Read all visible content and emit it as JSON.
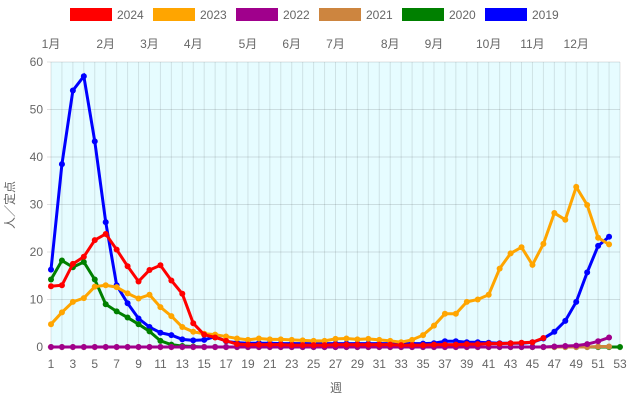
{
  "chart_data": {
    "type": "line",
    "xlabel": "週",
    "ylabel": "人／定点",
    "xlim": [
      1,
      53
    ],
    "ylim": [
      0,
      60
    ],
    "yticks": [
      0,
      10,
      20,
      30,
      40,
      50,
      60
    ],
    "xticks": [
      1,
      3,
      5,
      7,
      9,
      11,
      13,
      15,
      17,
      19,
      21,
      23,
      25,
      27,
      29,
      31,
      33,
      35,
      37,
      39,
      41,
      43,
      45,
      47,
      49,
      51,
      53
    ],
    "grid": true,
    "legend": "top",
    "background": "#e6fcff",
    "months": [
      {
        "label": "1月",
        "week": 1
      },
      {
        "label": "2月",
        "week": 6
      },
      {
        "label": "3月",
        "week": 10
      },
      {
        "label": "4月",
        "week": 14
      },
      {
        "label": "5月",
        "week": 19
      },
      {
        "label": "6月",
        "week": 23
      },
      {
        "label": "7月",
        "week": 27
      },
      {
        "label": "8月",
        "week": 32
      },
      {
        "label": "9月",
        "week": 36
      },
      {
        "label": "10月",
        "week": 41
      },
      {
        "label": "11月",
        "week": 45
      },
      {
        "label": "12月",
        "week": 49
      }
    ],
    "series": [
      {
        "name": "2024",
        "color": "#ff0000",
        "values": [
          12.8,
          13,
          17.5,
          19,
          22.5,
          23.8,
          20.5,
          17,
          13.8,
          16.2,
          17.2,
          14,
          11.2,
          5,
          2.6,
          2,
          1.3,
          0.6,
          0.5,
          0.5,
          0.5,
          0.5,
          0.4,
          0.4,
          0.4,
          0.4,
          0.5,
          0.5,
          0.5,
          0.5,
          0.5,
          0.5,
          0.4,
          0.4,
          0.4,
          0.5,
          0.5,
          0.5,
          0.6,
          0.6,
          0.7,
          0.7,
          0.8,
          0.9,
          1,
          1.9
        ]
      },
      {
        "name": "2023",
        "color": "#ffa500",
        "values": [
          4.8,
          7.3,
          9.5,
          10.3,
          12.7,
          13,
          12.6,
          11.3,
          10.2,
          11,
          8.4,
          6.5,
          4.2,
          3.2,
          2.8,
          2.6,
          2.2,
          1.8,
          1.5,
          1.8,
          1.6,
          1.6,
          1.5,
          1.4,
          1.3,
          1.3,
          1.7,
          1.8,
          1.6,
          1.7,
          1.5,
          1.3,
          1,
          1.5,
          2.5,
          4.5,
          7,
          7,
          9.5,
          10,
          11,
          16.5,
          19.7,
          21,
          17.3,
          21.7,
          28.2,
          26.8,
          33.7,
          29.9,
          23,
          21.6
        ]
      },
      {
        "name": "2022",
        "color": "#a0008c",
        "values": [
          0,
          0,
          0,
          0,
          0,
          0,
          0,
          0,
          0,
          0,
          0,
          0,
          0,
          0,
          0,
          0,
          0,
          0,
          0,
          0,
          0,
          0,
          0,
          0,
          0,
          0,
          0,
          0,
          0,
          0,
          0,
          0,
          0,
          0,
          0,
          0,
          0,
          0,
          0,
          0,
          0,
          0,
          0,
          0,
          0,
          0,
          0.1,
          0.2,
          0.3,
          0.6,
          1.2,
          2
        ]
      },
      {
        "name": "2021",
        "color": "#cd853f",
        "values": [
          0,
          0,
          0,
          0,
          0,
          0,
          0,
          0,
          0,
          0,
          0,
          0,
          0,
          0,
          0,
          0,
          0,
          0,
          0,
          0,
          0,
          0,
          0,
          0,
          0,
          0,
          0,
          0,
          0,
          0,
          0,
          0,
          0,
          0,
          0,
          0,
          0,
          0,
          0,
          0,
          0,
          0,
          0,
          0,
          0,
          0,
          0,
          0,
          0,
          0,
          0.1,
          0.1
        ]
      },
      {
        "name": "2020",
        "color": "#008000",
        "values": [
          14.2,
          18.2,
          16.8,
          17.9,
          14.2,
          9,
          7.5,
          6.2,
          4.8,
          3.3,
          1.3,
          0.5,
          0.2,
          0.1,
          0,
          0,
          0,
          0,
          0,
          0,
          0,
          0,
          0,
          0,
          0,
          0,
          0,
          0,
          0,
          0,
          0,
          0,
          0,
          0,
          0,
          0,
          0,
          0,
          0,
          0,
          0,
          0,
          0,
          0,
          0,
          0,
          0,
          0,
          0,
          0,
          0,
          0,
          0
        ]
      },
      {
        "name": "2019",
        "color": "#0000ff",
        "values": [
          16.3,
          38.5,
          54,
          57,
          43.3,
          26.3,
          13,
          9.2,
          6,
          4.2,
          3,
          2.5,
          1.6,
          1.4,
          1.5,
          2.2,
          1.2,
          0.9,
          0.8,
          0.8,
          0.8,
          0.7,
          0.7,
          0.7,
          0.7,
          0.7,
          0.7,
          0.7,
          0.7,
          0.7,
          0.7,
          0.7,
          0.7,
          0.7,
          0.7,
          0.8,
          1.2,
          1.2,
          1,
          1,
          0.9,
          0.8,
          0.8,
          0.8,
          1,
          1.8,
          3.2,
          5.5,
          9.5,
          15.7,
          21.3,
          23.2
        ]
      }
    ]
  }
}
